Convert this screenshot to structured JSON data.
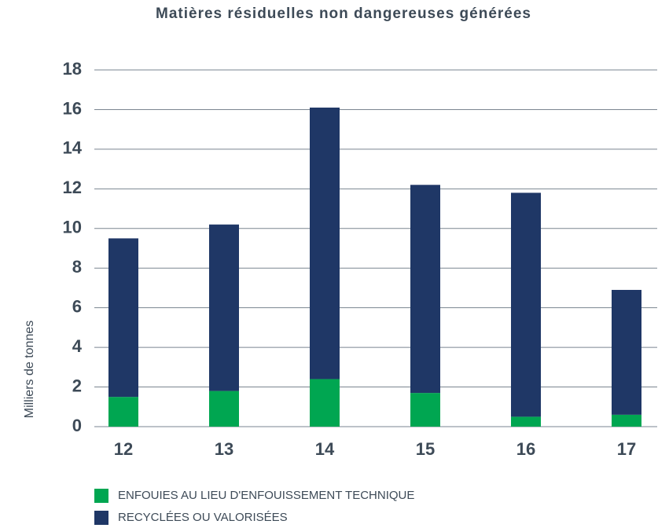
{
  "chart_data": {
    "type": "stacked_bar",
    "title": "Matières résiduelles non dangereuses générées",
    "y_label": "Milliers de tonnes",
    "categories": [
      "12",
      "13",
      "14",
      "15",
      "16",
      "17"
    ],
    "series": [
      {
        "name": "ENFOUIES AU LIEU D'ENFOUISSEMENT TECHNIQUE",
        "color": "#00a651",
        "values": [
          1.5,
          1.8,
          2.4,
          1.7,
          0.5,
          0.6
        ]
      },
      {
        "name": "RECYCLÉES OU VALORISÉES",
        "color": "#1f3766",
        "values": [
          8.0,
          8.4,
          13.7,
          10.5,
          11.3,
          6.3
        ]
      }
    ],
    "ylim": [
      0,
      18
    ],
    "yticks": [
      0,
      2,
      4,
      6,
      8,
      10,
      12,
      14,
      16,
      18
    ],
    "grid": true
  }
}
